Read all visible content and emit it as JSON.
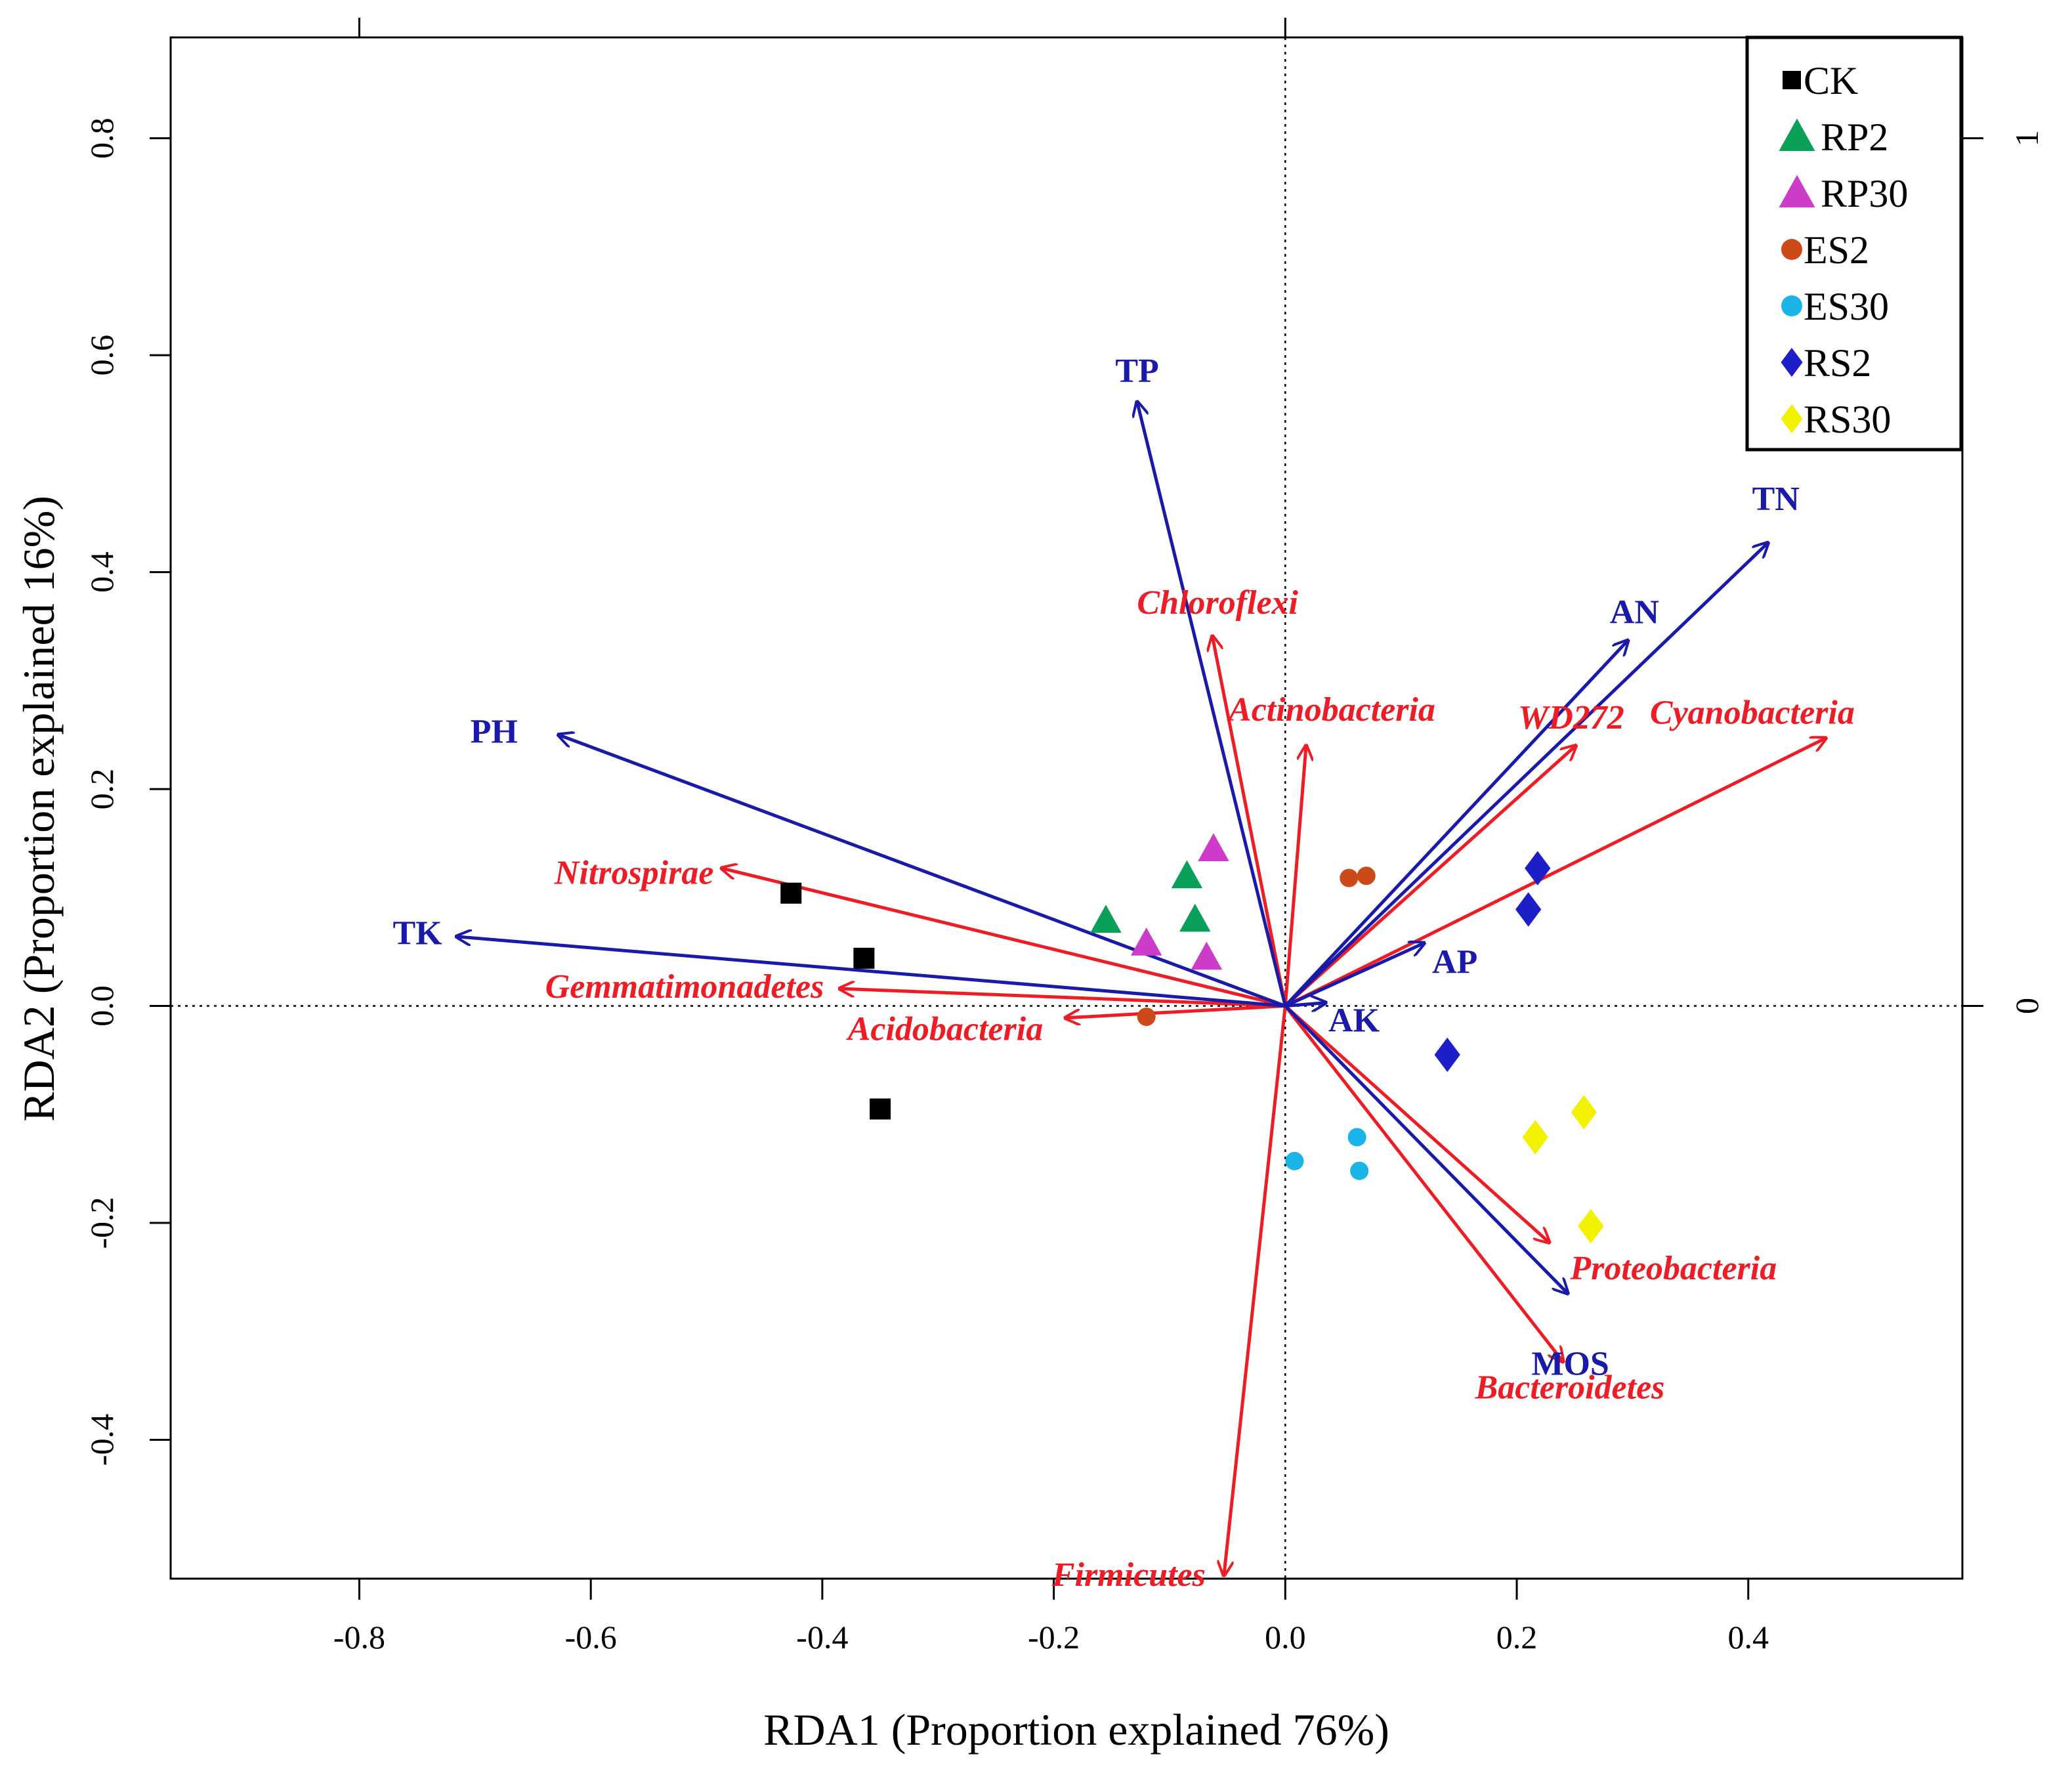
{
  "chart_data": {
    "type": "scatter",
    "title": "",
    "xlabel": "RDA1 (Proportion explained 76%)",
    "ylabel": "RDA2 (Proportion explained 16%)",
    "xlim": [
      -0.963,
      0.585
    ],
    "ylim": [
      -0.528,
      0.893
    ],
    "x_ticks": [
      {
        "value": -0.8,
        "label": "-0.8"
      },
      {
        "value": -0.6,
        "label": "-0.6"
      },
      {
        "value": -0.4,
        "label": "-0.4"
      },
      {
        "value": -0.2,
        "label": "-0.2"
      },
      {
        "value": 0.0,
        "label": "0.0"
      },
      {
        "value": 0.2,
        "label": "0.2"
      },
      {
        "value": 0.4,
        "label": "0.4"
      }
    ],
    "y_ticks": [
      {
        "value": -0.4,
        "label": "-0.4"
      },
      {
        "value": -0.2,
        "label": "-0.2"
      },
      {
        "value": 0.0,
        "label": "0.0"
      },
      {
        "value": 0.2,
        "label": "0.2"
      },
      {
        "value": 0.4,
        "label": "0.4"
      },
      {
        "value": 0.6,
        "label": "0.6"
      },
      {
        "value": 0.8,
        "label": "0.8"
      }
    ],
    "secondary_y_ticks": [
      {
        "value": 0.0,
        "label": "0"
      },
      {
        "value": 0.8,
        "label": "1"
      }
    ],
    "colors": {
      "env": "#1a1aaa",
      "taxa": "#ee1c24",
      "reference_line": "#000000",
      "frame": "#000000"
    },
    "legend": {
      "position": "top-right",
      "entries": [
        {
          "name": "CK",
          "marker": "square",
          "color": "#000000"
        },
        {
          "name": "RP2",
          "marker": "triangle",
          "color": "#0aa05a"
        },
        {
          "name": "RP30",
          "marker": "triangle",
          "color": "#cc3cc8"
        },
        {
          "name": "ES2",
          "marker": "circle",
          "color": "#cc4a18"
        },
        {
          "name": "ES30",
          "marker": "circle",
          "color": "#1ab4e8"
        },
        {
          "name": "RS2",
          "marker": "diamond",
          "color": "#1e1ec8"
        },
        {
          "name": "RS30",
          "marker": "diamond",
          "color": "#f2f200"
        }
      ]
    },
    "series": [
      {
        "name": "CK",
        "marker": "square",
        "color": "#000000",
        "points": [
          [
            -0.427,
            0.104
          ],
          [
            -0.364,
            0.044
          ],
          [
            -0.35,
            -0.095
          ]
        ]
      },
      {
        "name": "RP2",
        "marker": "triangle",
        "color": "#0aa05a",
        "points": [
          [
            -0.155,
            0.079
          ],
          [
            -0.085,
            0.12
          ],
          [
            -0.078,
            0.08
          ]
        ]
      },
      {
        "name": "RP30",
        "marker": "triangle",
        "color": "#cc3cc8",
        "points": [
          [
            -0.062,
            0.145
          ],
          [
            -0.12,
            0.058
          ],
          [
            -0.068,
            0.045
          ]
        ]
      },
      {
        "name": "ES2",
        "marker": "circle",
        "color": "#cc4a18",
        "points": [
          [
            0.055,
            0.118
          ],
          [
            0.07,
            0.12
          ],
          [
            -0.12,
            -0.01
          ]
        ]
      },
      {
        "name": "ES30",
        "marker": "circle",
        "color": "#1ab4e8",
        "points": [
          [
            0.008,
            -0.143
          ],
          [
            0.062,
            -0.121
          ],
          [
            0.064,
            -0.152
          ]
        ]
      },
      {
        "name": "RS2",
        "marker": "diamond",
        "color": "#1e1ec8",
        "points": [
          [
            0.218,
            0.127
          ],
          [
            0.21,
            0.089
          ],
          [
            0.14,
            -0.045
          ]
        ]
      },
      {
        "name": "RS30",
        "marker": "diamond",
        "color": "#f2f200",
        "points": [
          [
            0.216,
            -0.121
          ],
          [
            0.258,
            -0.098
          ],
          [
            0.264,
            -0.203
          ]
        ]
      }
    ],
    "env_vectors": [
      {
        "name": "TP",
        "x": -0.128,
        "y": 0.557
      },
      {
        "name": "TN",
        "x": 0.417,
        "y": 0.427
      },
      {
        "name": "AN",
        "x": 0.296,
        "y": 0.337
      },
      {
        "name": "PH",
        "x": -0.628,
        "y": 0.25
      },
      {
        "name": "TK",
        "x": -0.716,
        "y": 0.064
      },
      {
        "name": "AP",
        "x": 0.12,
        "y": 0.058
      },
      {
        "name": "AK",
        "x": 0.035,
        "y": 0.003
      },
      {
        "name": "MOS",
        "x": 0.244,
        "y": -0.265
      }
    ],
    "taxon_vectors": [
      {
        "name": "Chloroflexi",
        "x": -0.063,
        "y": 0.341
      },
      {
        "name": "Actinobacteria",
        "x": 0.018,
        "y": 0.24
      },
      {
        "name": "WD272",
        "x": 0.251,
        "y": 0.24
      },
      {
        "name": "Cyanobacteria",
        "x": 0.467,
        "y": 0.247
      },
      {
        "name": "Nitrospirae",
        "x": -0.487,
        "y": 0.127
      },
      {
        "name": "Gemmatimonadetes",
        "x": -0.385,
        "y": 0.016
      },
      {
        "name": "Acidobacteria",
        "x": -0.19,
        "y": -0.011
      },
      {
        "name": "Proteobacteria",
        "x": 0.228,
        "y": -0.218
      },
      {
        "name": "Bacteroidetes",
        "x": 0.24,
        "y": -0.328
      },
      {
        "name": "Firmicutes",
        "x": -0.053,
        "y": -0.525
      }
    ]
  }
}
